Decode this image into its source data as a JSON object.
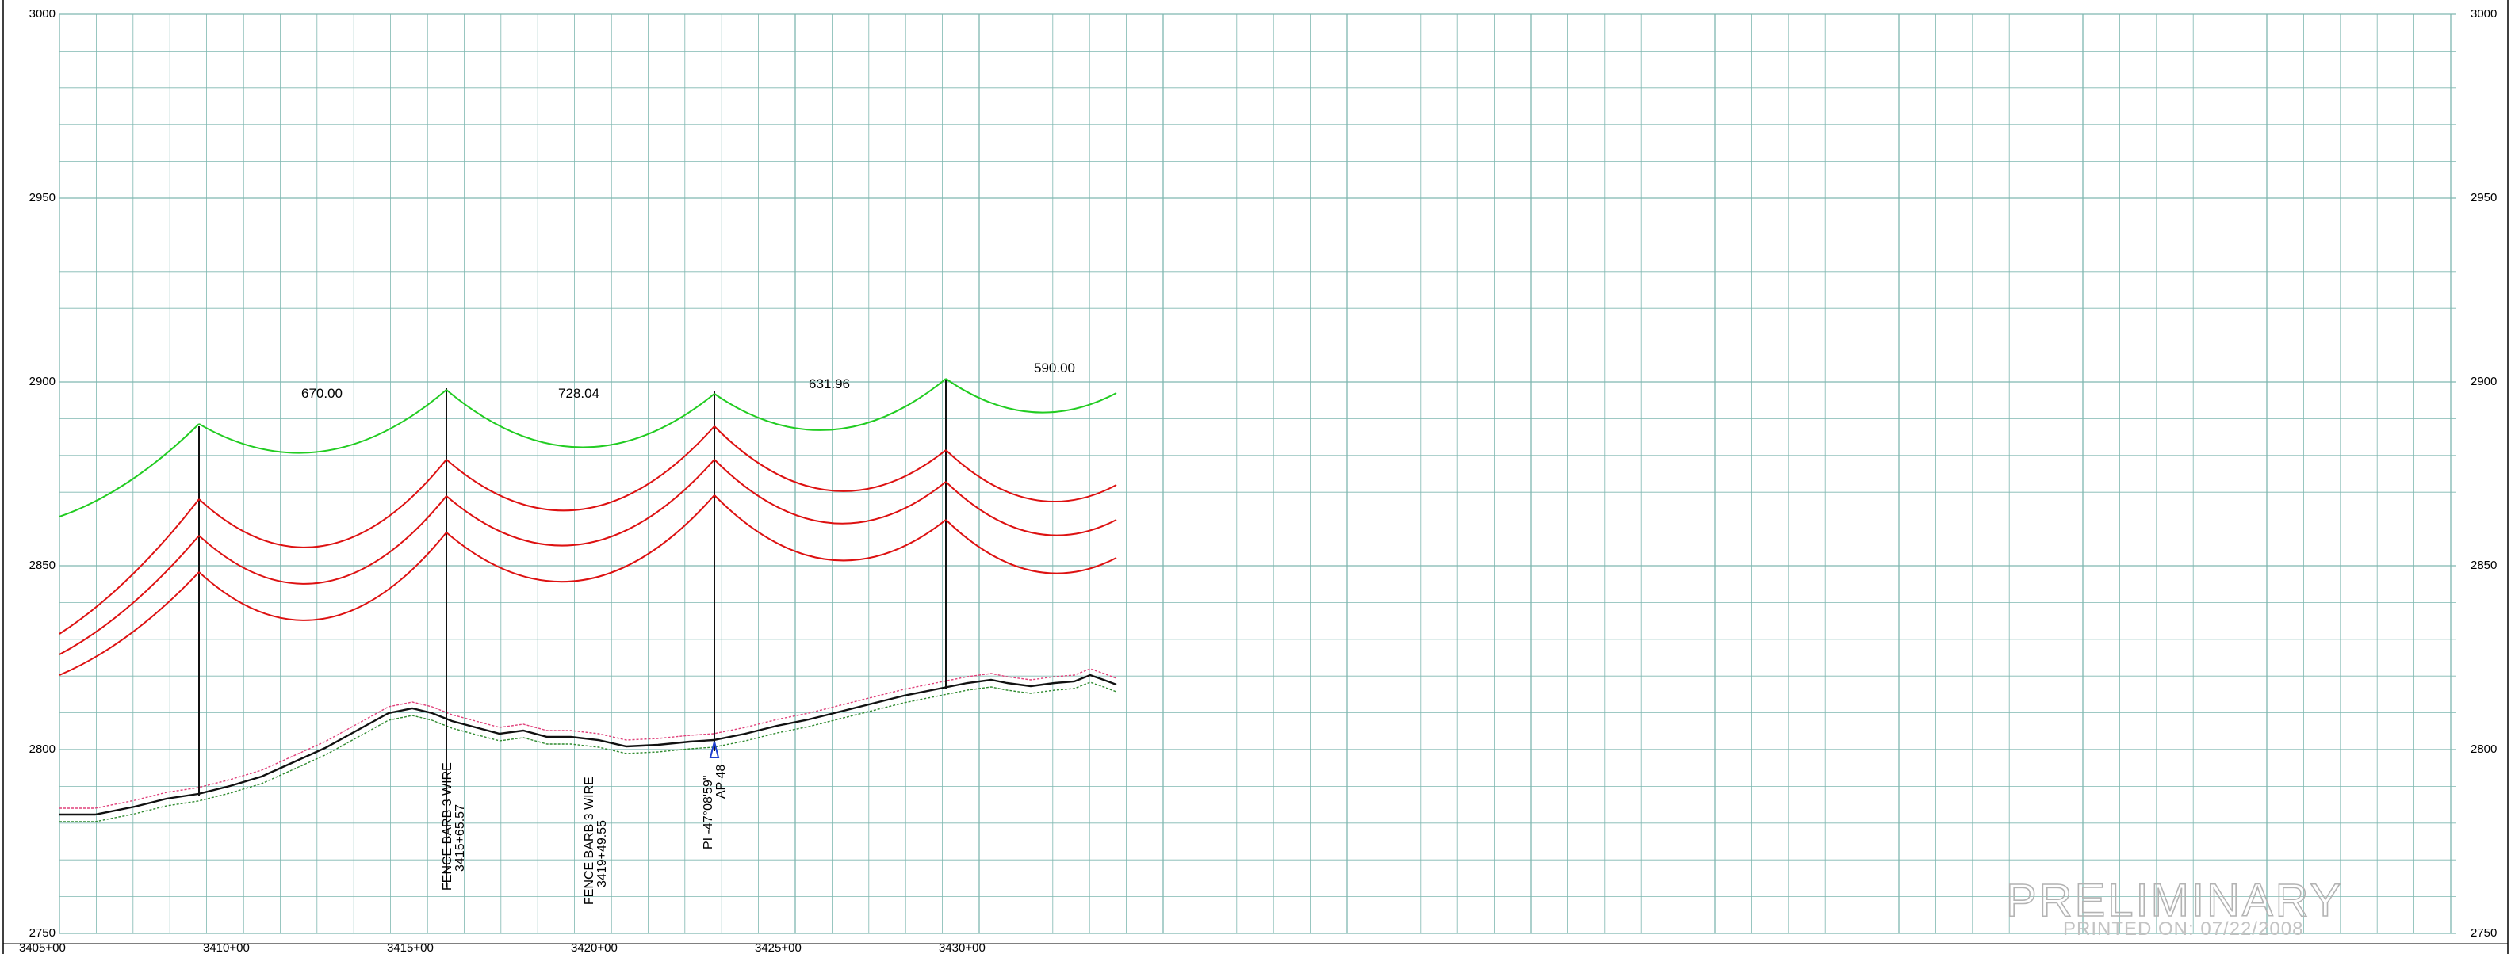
{
  "profile": {
    "elevation_labels": [
      "3000",
      "2950",
      "2900",
      "2850",
      "2800",
      "2750"
    ],
    "station_labels": [
      "3405+00",
      "3410+00",
      "3415+00",
      "3420+00",
      "3425+00",
      "3430+00"
    ],
    "span_labels": [
      "670.00",
      "728.04",
      "631.96",
      "590.00"
    ],
    "annotations": {
      "fence1_line1": "FENCE BARB 3 WIRE",
      "fence1_line2": "3415+65.57",
      "fence2_line1": "FENCE BARB 3 WIRE",
      "fence2_line2": "3419+49.55",
      "pi_line1": "PI -47°08'59\"",
      "pi_line2": "AP 48"
    },
    "watermark": {
      "title": "PRELIMINARY",
      "subtitle": "PRINTED ON: 07/22/2008"
    },
    "colors": {
      "grid": "#7fb7b0",
      "top_conductor": "#22cc22",
      "lower_conductors": "#dd1111",
      "ground": "#111111",
      "ground_upper_offset": "#e0407a",
      "ground_lower_offset": "#2f8a2f",
      "structure": "#111111",
      "marker": "#1f3fd0"
    }
  }
}
